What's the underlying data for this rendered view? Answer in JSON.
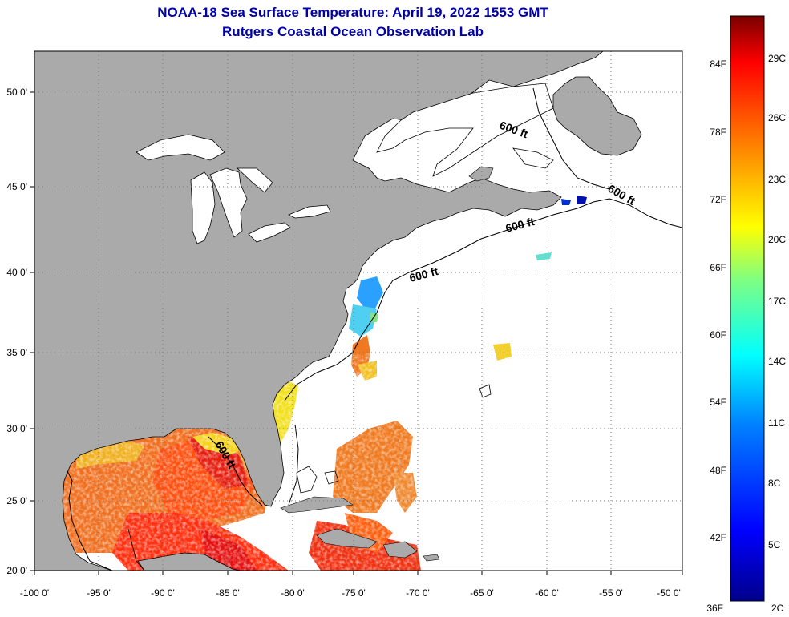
{
  "title": {
    "line1": "NOAA-18 Sea Surface Temperature:  April 19, 2022 1553 GMT",
    "line2": "Rutgers Coastal Ocean Observation Lab"
  },
  "colors": {
    "title": "#0000aa",
    "land": "#aaaaaa",
    "lakes": "#ffffff",
    "ocean_nodata": "#ffffff",
    "border": "#000000",
    "graticule": "#777777"
  },
  "map": {
    "lon_ticks": [
      "-100 0'",
      "-95 0'",
      "-90 0'",
      "-85 0'",
      "-80 0'",
      "-75 0'",
      "-70 0'",
      "-65 0'",
      "-60 0'",
      "-55 0'",
      "-50 0'"
    ],
    "lat_ticks": [
      "20 0'",
      "25 0'",
      "30 0'",
      "35 0'",
      "40 0'",
      "45 0'",
      "50 0'"
    ],
    "lon_range": [
      -100,
      -50
    ],
    "lat_range": [
      20,
      52
    ],
    "isobath_label": "600 ft",
    "isobath_labels": [
      "600 ft",
      "600 ft",
      "600 ft",
      "600 ft",
      "600 ft"
    ]
  },
  "colorbar": {
    "f_labels": [
      "84F",
      "78F",
      "72F",
      "66F",
      "60F",
      "54F",
      "48F",
      "42F",
      "36F"
    ],
    "c_labels": [
      "29C",
      "26C",
      "23C",
      "20C",
      "17C",
      "14C",
      "11C",
      "8C",
      "5C",
      "2C"
    ],
    "range_f": [
      36,
      86
    ],
    "stops": [
      "#00008a",
      "#0000ff",
      "#0080ff",
      "#00ffff",
      "#80ff80",
      "#ffff00",
      "#ff8000",
      "#ff0000",
      "#7a0000"
    ]
  }
}
